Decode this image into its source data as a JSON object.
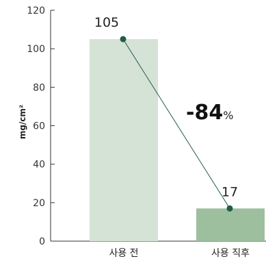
{
  "chart_data": {
    "type": "bar",
    "categories": [
      "사용 전",
      "사용 직후"
    ],
    "values": [
      105,
      17
    ],
    "ylabel": "mg/cm²",
    "ylim": [
      0,
      120
    ],
    "yticks": [
      0,
      20,
      40,
      60,
      80,
      100,
      120
    ],
    "data_labels": [
      "105",
      "17"
    ],
    "bar_colors": [
      "#d5e2d6",
      "#9dbf9e"
    ],
    "connector_color": "#245c45",
    "annotation": {
      "value": "-84",
      "unit": "%"
    },
    "grid": false,
    "legend": "none"
  }
}
